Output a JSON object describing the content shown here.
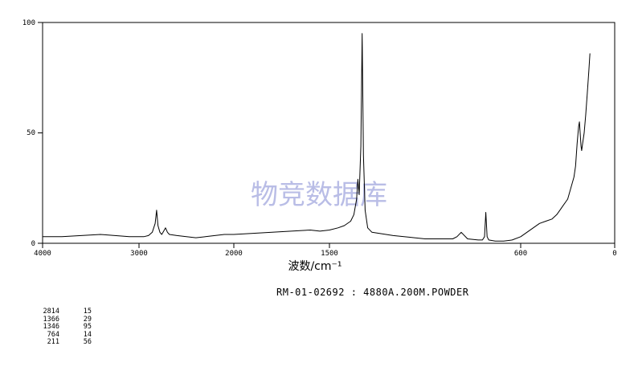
{
  "chart_data": {
    "type": "line",
    "title": "",
    "xlabel": "波数/cm⁻¹",
    "ylabel": "",
    "xlim": [
      4000,
      0
    ],
    "ylim": [
      0,
      100
    ],
    "x_ticks": [
      "4000",
      "3000",
      "2000",
      "1500",
      "600",
      "0"
    ],
    "y_ticks": [
      "100",
      "50",
      "0"
    ],
    "series": [
      {
        "x": [
          4000,
          3800,
          3600,
          3400,
          3250,
          3100,
          3000,
          2950,
          2900,
          2860,
          2830,
          2814,
          2800,
          2780,
          2760,
          2740,
          2720,
          2700,
          2680,
          2600,
          2500,
          2400,
          2300,
          2200,
          2100,
          2000,
          1900,
          1800,
          1700,
          1600,
          1550,
          1500,
          1460,
          1430,
          1400,
          1385,
          1372,
          1366,
          1360,
          1352,
          1346,
          1340,
          1332,
          1320,
          1300,
          1200,
          1100,
          1050,
          1000,
          920,
          900,
          880,
          850,
          800,
          780,
          770,
          764,
          758,
          750,
          720,
          700,
          680,
          640,
          600,
          560,
          520,
          480,
          440,
          400,
          370,
          350,
          330,
          300,
          280,
          260,
          250,
          240,
          230,
          225,
          215,
          211,
          205,
          195,
          185,
          175,
          165,
          158
        ],
        "y": [
          3,
          3,
          3.5,
          4,
          3.5,
          3,
          3,
          3,
          3.5,
          5,
          9,
          15,
          8,
          5,
          4,
          5.5,
          7,
          5,
          4,
          3.5,
          3,
          2.5,
          3,
          3.5,
          4,
          4,
          4.5,
          5,
          5.5,
          6,
          5.5,
          6,
          7,
          8,
          10,
          13,
          20,
          29,
          22,
          44,
          95,
          40,
          15,
          7,
          5,
          3.5,
          2.5,
          2,
          2,
          2,
          3,
          5,
          2,
          1.5,
          1.5,
          3,
          14,
          3,
          1.5,
          1,
          1,
          1,
          1.5,
          3,
          5,
          7,
          9,
          10,
          11,
          13,
          15,
          17,
          20,
          25,
          30,
          35,
          45,
          53,
          55,
          44,
          42,
          45,
          50,
          58,
          68,
          78,
          86
        ]
      }
    ],
    "peaks": [
      {
        "x": "2814",
        "y": "15"
      },
      {
        "x": "1366",
        "y": "29"
      },
      {
        "x": "1346",
        "y": "95"
      },
      {
        "x": "764",
        "y": "14"
      },
      {
        "x": "211",
        "y": "56"
      }
    ],
    "grid": false,
    "legend": "none"
  },
  "sample_id": "RM-01-02692 : 4880A.200M.POWDER",
  "watermark": "物竞数据库"
}
